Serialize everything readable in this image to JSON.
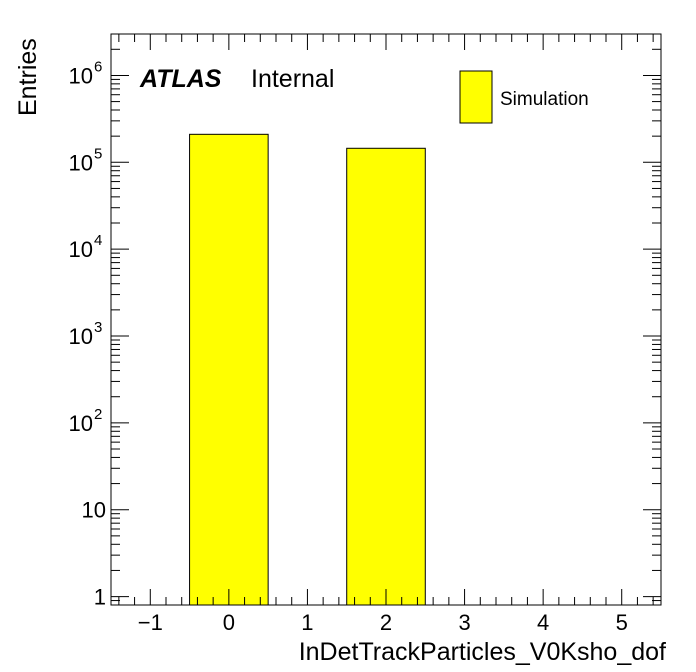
{
  "chart_data": {
    "type": "bar",
    "x_label": "InDetTrackParticles_V0Ksho_dof",
    "y_label": "Entries",
    "y_scale": "log",
    "x_range": [
      -1.5,
      5.5
    ],
    "y_range": [
      0.8,
      3000000
    ],
    "x_tick_values": [
      -1,
      0,
      1,
      2,
      3,
      4,
      5
    ],
    "x_tick_labels": [
      "−1",
      "0",
      "1",
      "2",
      "3",
      "4",
      "5"
    ],
    "y_tick_labels": [
      {
        "value": 1,
        "base": "1",
        "exp": ""
      },
      {
        "value": 10,
        "base": "10",
        "exp": ""
      },
      {
        "value": 100,
        "base": "10",
        "exp": "2"
      },
      {
        "value": 1000,
        "base": "10",
        "exp": "3"
      },
      {
        "value": 10000,
        "base": "10",
        "exp": "4"
      },
      {
        "value": 100000,
        "base": "10",
        "exp": "5"
      },
      {
        "value": 1000000,
        "base": "10",
        "exp": "6"
      }
    ],
    "bins": [
      {
        "low": -0.5,
        "high": 0.5,
        "value": 210000
      },
      {
        "low": 1.5,
        "high": 2.5,
        "value": 145000
      }
    ],
    "series": [
      {
        "name": "Simulation",
        "color": "#ffff00"
      }
    ],
    "legend_position": "top-right",
    "grid": false
  },
  "labels": {
    "atlas": "ATLAS",
    "status": "Internal"
  }
}
